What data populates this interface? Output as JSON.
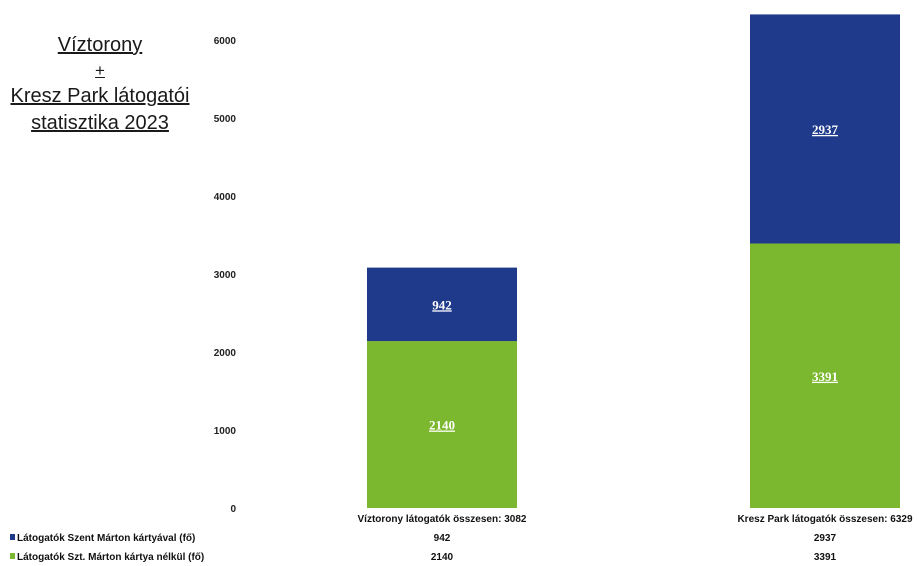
{
  "title": {
    "line1": "Víztorony",
    "line2": "+",
    "line3": "Kresz Park látogatói",
    "line4": "statisztika 2023"
  },
  "chart_data": {
    "type": "bar",
    "stacked": true,
    "categories": [
      "Víztorony látogatók összesen: 3082",
      "Kresz Park látogatók összesen: 6329"
    ],
    "series": [
      {
        "name": "Látogatók Szent Márton kártyával (fő)",
        "values": [
          942,
          2937
        ],
        "color": "#1f3a8a"
      },
      {
        "name": "Látogatók Szt. Márton kártya nélkül (fő)",
        "values": [
          2140,
          3391
        ],
        "color": "#7cb82f"
      }
    ],
    "ylim": [
      0,
      6000
    ],
    "yticks": [
      "0",
      "1000",
      "2000",
      "3000",
      "4000",
      "5000",
      "6000"
    ],
    "data_table": true,
    "legend": "bottom-left"
  }
}
